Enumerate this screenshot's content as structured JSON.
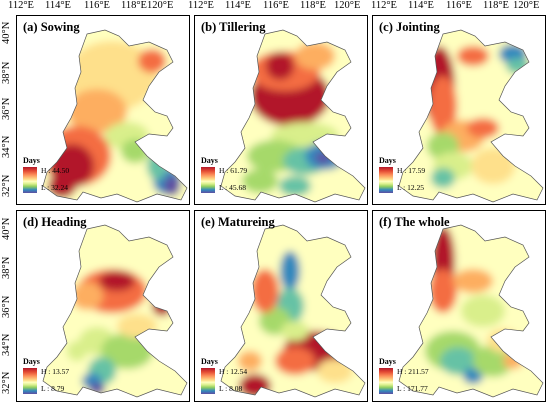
{
  "lon_top_left": [
    "112°E",
    "114°E",
    "116°E",
    "118°E",
    "120°E"
  ],
  "lon_top_mid": [
    "112°E",
    "114°E",
    "116°E",
    "118°E",
    "120°E"
  ],
  "lon_top_right": [
    "112°E",
    "114°E",
    "116°E",
    "118°E",
    "120°E"
  ],
  "lat_top": [
    "40°N",
    "38°N",
    "36°N",
    "34°N",
    "32°N"
  ],
  "lat_bottom": [
    "40°N",
    "38°N",
    "36°N",
    "34°N",
    "32°N"
  ],
  "legend_title": "Days",
  "panels": [
    {
      "title": "(a) Sowing",
      "high": "H : 44.50",
      "low": "L : 32.24"
    },
    {
      "title": "(b) Tillering",
      "high": "H : 61.79",
      "low": "L : 45.68"
    },
    {
      "title": "(c) Jointing",
      "high": "H : 17.59",
      "low": "L : 12.25"
    },
    {
      "title": "(d) Heading",
      "high": "H : 13.57",
      "low": "L : 8.79"
    },
    {
      "title": "(e) Matureing",
      "high": "H : 12.54",
      "low": "L : 8.08"
    },
    {
      "title": "(f) The whole",
      "high": "H : 211.57",
      "low": "L : 171.77"
    }
  ],
  "colors": {
    "high": "#b2182b",
    "mid": "#ffffbf",
    "low": "#5e4fa2"
  }
}
